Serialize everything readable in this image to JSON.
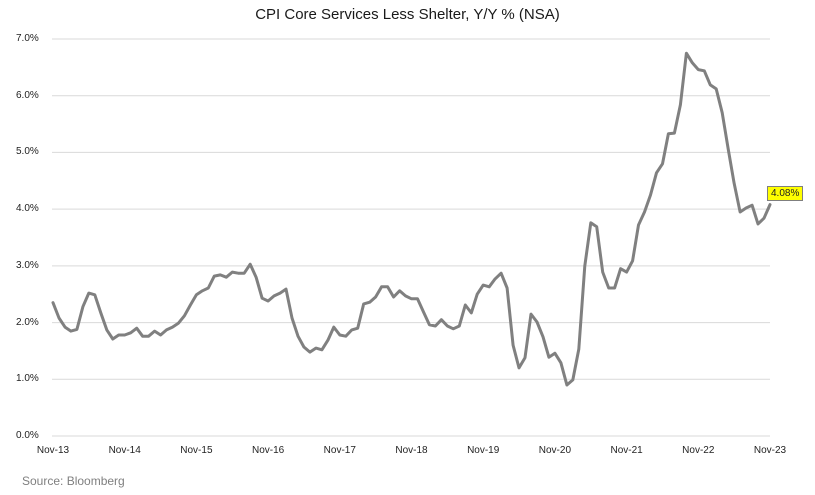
{
  "chart": {
    "title": "CPI Core Services Less Shelter, Y/Y % (NSA)",
    "source": "Source: Bloomberg",
    "callout_label": "4.08%",
    "line_color": "#808080",
    "callout_color": "#ffff00",
    "y_ticks": [
      "7.0%",
      "6.0%",
      "5.0%",
      "4.0%",
      "3.0%",
      "2.0%",
      "1.0%",
      "0.0%"
    ],
    "x_ticks": [
      "Nov-13",
      "Nov-14",
      "Nov-15",
      "Nov-16",
      "Nov-17",
      "Nov-18",
      "Nov-19",
      "Nov-20",
      "Nov-21",
      "Nov-22",
      "Nov-23"
    ]
  },
  "chart_data": {
    "type": "line",
    "title": "CPI Core Services Less Shelter, Y/Y % (NSA)",
    "xlabel": "",
    "ylabel": "",
    "ylim": [
      0,
      7
    ],
    "y_tick_format": "percent",
    "grid": "horizontal",
    "legend": "none",
    "x_range": [
      "Nov-13",
      "Nov-23"
    ],
    "categories": [
      "Nov-13",
      "Nov-14",
      "Nov-15",
      "Nov-16",
      "Nov-17",
      "Nov-18",
      "Nov-19",
      "Nov-20",
      "Nov-21",
      "Nov-22",
      "Nov-23"
    ],
    "series": [
      {
        "name": "CPI Core Services Less Shelter Y/Y %",
        "frequency": "monthly, Nov-13 to Nov-23",
        "values": [
          2.35,
          2.08,
          1.92,
          1.85,
          1.88,
          2.28,
          2.52,
          2.49,
          2.17,
          1.87,
          1.71,
          1.78,
          1.78,
          1.82,
          1.9,
          1.76,
          1.76,
          1.85,
          1.78,
          1.87,
          1.92,
          1.99,
          2.12,
          2.31,
          2.49,
          2.56,
          2.61,
          2.82,
          2.84,
          2.8,
          2.89,
          2.87,
          2.87,
          3.03,
          2.8,
          2.43,
          2.38,
          2.47,
          2.52,
          2.59,
          2.08,
          1.76,
          1.57,
          1.48,
          1.55,
          1.52,
          1.69,
          1.92,
          1.78,
          1.76,
          1.87,
          1.9,
          2.33,
          2.36,
          2.45,
          2.63,
          2.63,
          2.45,
          2.56,
          2.47,
          2.42,
          2.42,
          2.19,
          1.96,
          1.94,
          2.05,
          1.94,
          1.89,
          1.94,
          2.31,
          2.17,
          2.5,
          2.66,
          2.63,
          2.77,
          2.87,
          2.61,
          1.6,
          1.2,
          1.38,
          2.15,
          2.01,
          1.75,
          1.39,
          1.46,
          1.29,
          0.9,
          0.99,
          1.53,
          3.0,
          3.76,
          3.69,
          2.89,
          2.61,
          2.61,
          2.95,
          2.89,
          3.09,
          3.72,
          3.95,
          4.25,
          4.64,
          4.8,
          5.33,
          5.34,
          5.84,
          6.75,
          6.58,
          6.46,
          6.44,
          6.19,
          6.12,
          5.7,
          5.06,
          4.46,
          3.95,
          4.02,
          4.07,
          3.74,
          3.84,
          4.08
        ]
      }
    ],
    "annotations": [
      {
        "text": "4.08%",
        "x": "Nov-23",
        "y": 4.08,
        "style": "yellow callout box"
      }
    ],
    "source": "Source: Bloomberg"
  }
}
